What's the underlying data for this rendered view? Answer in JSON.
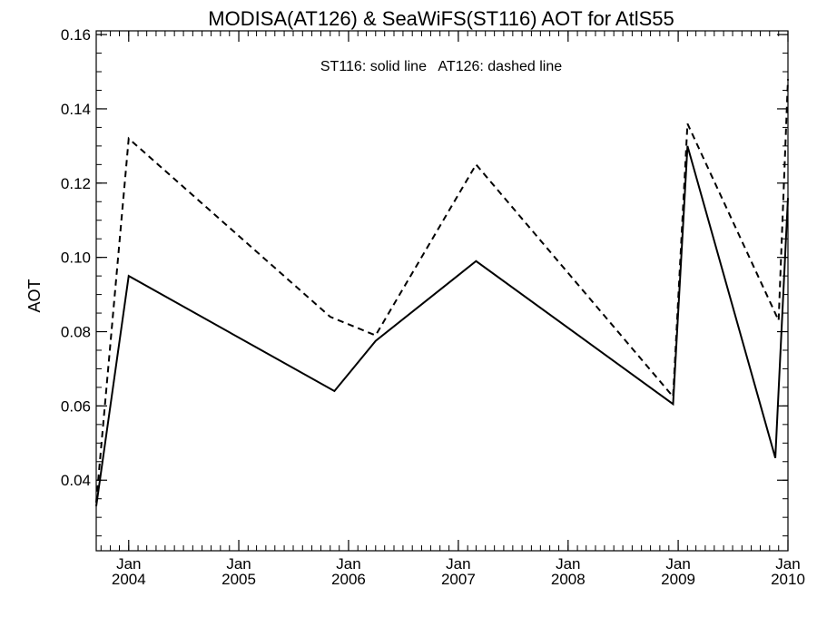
{
  "chart_data": {
    "type": "line",
    "title": "MODISA(AT126) & SeaWiFS(ST116)  AOT for AtlS55",
    "annotation": "ST116: solid line   AT126: dashed line",
    "xlabel": "",
    "ylabel": "AOT",
    "grid": false,
    "xlim": [
      "2003-09-15",
      "2010-01-01"
    ],
    "ylim": [
      0.021,
      0.161
    ],
    "y_ticks": [
      0.04,
      0.06,
      0.08,
      0.1,
      0.12,
      0.14,
      0.16
    ],
    "y_tick_labels": [
      "0.04",
      "0.06",
      "0.08",
      "0.10",
      "0.12",
      "0.14",
      "0.16"
    ],
    "y_minor_step": 0.005,
    "x_ticks": [
      {
        "date": "2004-01-01",
        "month": "Jan",
        "year": "2004"
      },
      {
        "date": "2005-01-01",
        "month": "Jan",
        "year": "2005"
      },
      {
        "date": "2006-01-01",
        "month": "Jan",
        "year": "2006"
      },
      {
        "date": "2007-01-01",
        "month": "Jan",
        "year": "2007"
      },
      {
        "date": "2008-01-01",
        "month": "Jan",
        "year": "2008"
      },
      {
        "date": "2009-01-01",
        "month": "Jan",
        "year": "2009"
      },
      {
        "date": "2010-01-01",
        "month": "Jan",
        "year": "2010"
      }
    ],
    "x_minor": "monthly",
    "series": [
      {
        "label": "ST116",
        "style": "solid",
        "color": "#000000",
        "points": [
          {
            "x": "2003-09-15",
            "y": 0.033
          },
          {
            "x": "2004-01-01",
            "y": 0.095
          },
          {
            "x": "2005-11-15",
            "y": 0.064
          },
          {
            "x": "2006-04-01",
            "y": 0.0775
          },
          {
            "x": "2007-03-01",
            "y": 0.099
          },
          {
            "x": "2008-12-15",
            "y": 0.0605
          },
          {
            "x": "2009-02-01",
            "y": 0.13
          },
          {
            "x": "2009-11-20",
            "y": 0.046
          },
          {
            "x": "2010-01-01",
            "y": 0.116
          }
        ]
      },
      {
        "label": "AT126",
        "style": "dashed",
        "color": "#000000",
        "points": [
          {
            "x": "2003-09-15",
            "y": 0.034
          },
          {
            "x": "2004-01-01",
            "y": 0.132
          },
          {
            "x": "2005-11-01",
            "y": 0.084
          },
          {
            "x": "2006-04-01",
            "y": 0.079
          },
          {
            "x": "2007-03-01",
            "y": 0.125
          },
          {
            "x": "2008-12-15",
            "y": 0.0625
          },
          {
            "x": "2009-02-01",
            "y": 0.136
          },
          {
            "x": "2009-12-01",
            "y": 0.083
          },
          {
            "x": "2010-01-01",
            "y": 0.148
          }
        ]
      }
    ]
  }
}
